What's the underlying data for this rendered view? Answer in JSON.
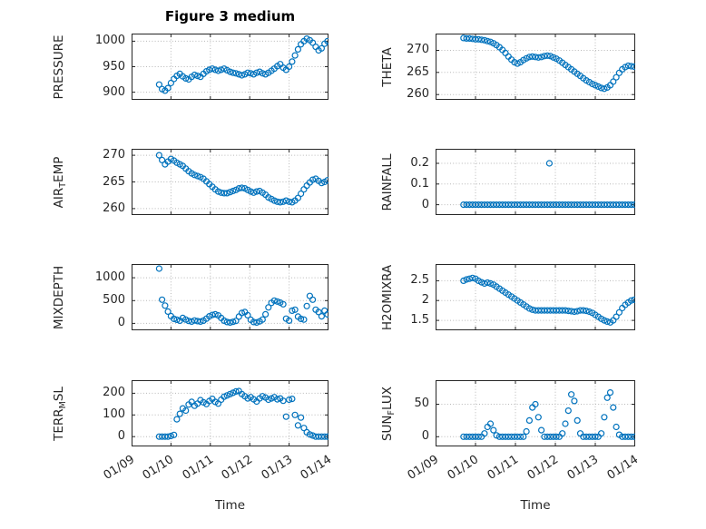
{
  "chart_data": {
    "type": "scatter",
    "title": "Figure 3 medium",
    "xlabel": "Time",
    "xlim": [
      9,
      14
    ],
    "x_ticks": [
      9,
      10,
      11,
      12,
      13,
      14
    ],
    "x_tick_labels": [
      "01/09",
      "01/10",
      "01/11",
      "01/12",
      "01/13",
      "01/14"
    ],
    "marker_color": "#0072BD",
    "grid": true,
    "legend": false,
    "common_x": [
      9.7,
      9.775,
      9.85,
      9.925,
      10.0,
      10.075,
      10.15,
      10.225,
      10.3,
      10.375,
      10.45,
      10.525,
      10.6,
      10.675,
      10.75,
      10.825,
      10.9,
      10.975,
      11.05,
      11.125,
      11.2,
      11.275,
      11.35,
      11.425,
      11.5,
      11.575,
      11.65,
      11.725,
      11.8,
      11.875,
      11.95,
      12.025,
      12.1,
      12.175,
      12.25,
      12.325,
      12.4,
      12.475,
      12.55,
      12.625,
      12.7,
      12.775,
      12.85,
      12.925,
      13.0,
      13.075,
      13.15,
      13.225,
      13.3,
      13.375,
      13.45,
      13.525,
      13.6,
      13.675,
      13.75,
      13.825,
      13.9,
      13.975
    ],
    "subplots": [
      {
        "name": "PRESSURE",
        "row": 0,
        "col": 0,
        "ylabel_segments": [
          {
            "text": "PRESSURE"
          }
        ],
        "yticks": [
          900,
          950,
          1000
        ],
        "ylim": [
          885,
          1015
        ],
        "y": [
          915,
          906,
          903,
          908,
          918,
          926,
          932,
          936,
          931,
          927,
          925,
          930,
          934,
          932,
          930,
          936,
          941,
          944,
          946,
          944,
          942,
          944,
          946,
          943,
          940,
          938,
          937,
          935,
          933,
          935,
          938,
          937,
          935,
          938,
          940,
          937,
          935,
          938,
          942,
          946,
          951,
          955,
          948,
          944,
          950,
          960,
          972,
          984,
          994,
          1000,
          1005,
          1002,
          997,
          989,
          982,
          986,
          995,
          1000
        ]
      },
      {
        "name": "THETA",
        "row": 0,
        "col": 1,
        "ylabel_segments": [
          {
            "text": "THETA"
          }
        ],
        "yticks": [
          260,
          265,
          270
        ],
        "ylim": [
          258.8,
          273.8
        ],
        "y": [
          272.8,
          272.7,
          272.7,
          272.6,
          272.5,
          272.5,
          272.4,
          272.3,
          272.1,
          271.9,
          271.6,
          271.2,
          270.7,
          270.1,
          269.4,
          268.6,
          267.9,
          267.3,
          267.0,
          267.3,
          267.8,
          268.2,
          268.5,
          268.6,
          268.5,
          268.4,
          268.5,
          268.7,
          268.8,
          268.7,
          268.4,
          268.1,
          267.7,
          267.2,
          266.7,
          266.2,
          265.7,
          265.2,
          264.7,
          264.2,
          263.7,
          263.2,
          262.8,
          262.4,
          262.1,
          261.8,
          261.5,
          261.3,
          261.6,
          262.1,
          262.9,
          263.9,
          264.9,
          265.7,
          266.2,
          266.5,
          266.4,
          266.3
        ]
      },
      {
        "name": "AIR_TEMP",
        "row": 1,
        "col": 0,
        "ylabel_segments": [
          {
            "text": "AIR"
          },
          {
            "text": "T",
            "sub": true
          },
          {
            "text": "EMP"
          }
        ],
        "yticks": [
          260,
          265,
          270
        ],
        "ylim": [
          258.8,
          271.2
        ],
        "y": [
          270.0,
          269.1,
          268.3,
          268.8,
          269.3,
          269.0,
          268.6,
          268.3,
          268.0,
          267.5,
          267.0,
          266.6,
          266.3,
          266.1,
          265.9,
          265.6,
          265.1,
          264.6,
          264.1,
          263.6,
          263.2,
          263.0,
          262.9,
          262.9,
          263.1,
          263.3,
          263.5,
          263.8,
          263.9,
          263.8,
          263.5,
          263.2,
          263.0,
          263.2,
          263.3,
          263.0,
          262.6,
          262.1,
          261.8,
          261.5,
          261.3,
          261.2,
          261.3,
          261.5,
          261.3,
          261.2,
          261.5,
          262.0,
          262.8,
          263.6,
          264.3,
          264.9,
          265.4,
          265.6,
          265.2,
          264.8,
          265.0,
          265.3
        ]
      },
      {
        "name": "RAINFALL",
        "row": 1,
        "col": 1,
        "ylabel_segments": [
          {
            "text": "RAINFALL"
          }
        ],
        "yticks": [
          0,
          0.1,
          0.2
        ],
        "ylim": [
          -0.05,
          0.27
        ],
        "y": [
          0,
          0,
          0,
          0,
          0,
          0,
          0,
          0,
          0,
          0,
          0,
          0,
          0,
          0,
          0,
          0,
          0,
          0,
          0,
          0,
          0,
          0,
          0,
          0,
          0,
          0,
          0,
          0,
          0,
          0,
          0,
          0,
          0,
          0,
          0,
          0,
          0,
          0,
          0,
          0,
          0,
          0,
          0,
          0,
          0,
          0,
          0,
          0,
          0,
          0,
          0,
          0,
          0,
          0,
          0,
          0,
          0,
          0
        ],
        "extra_points": [
          [
            11.85,
            0.2
          ]
        ]
      },
      {
        "name": "MIXDEPTH",
        "row": 2,
        "col": 0,
        "ylabel_segments": [
          {
            "text": "MIXDEPTH"
          }
        ],
        "yticks": [
          0,
          500,
          1000
        ],
        "ylim": [
          -150,
          1300
        ],
        "y": [
          1200,
          520,
          390,
          260,
          160,
          100,
          80,
          60,
          120,
          85,
          55,
          40,
          65,
          50,
          40,
          60,
          105,
          155,
          185,
          200,
          175,
          120,
          60,
          30,
          20,
          35,
          55,
          150,
          230,
          250,
          180,
          80,
          30,
          20,
          45,
          85,
          200,
          350,
          450,
          500,
          480,
          455,
          420,
          105,
          60,
          280,
          300,
          150,
          100,
          85,
          380,
          600,
          520,
          300,
          250,
          155,
          280,
          200
        ]
      },
      {
        "name": "H2OMIXRA",
        "row": 2,
        "col": 1,
        "ylabel_segments": [
          {
            "text": "H2OMIXRA"
          }
        ],
        "yticks": [
          1.5,
          2,
          2.5
        ],
        "ylim": [
          1.25,
          2.92
        ],
        "y": [
          2.5,
          2.53,
          2.55,
          2.57,
          2.55,
          2.5,
          2.46,
          2.43,
          2.45,
          2.43,
          2.4,
          2.35,
          2.3,
          2.25,
          2.2,
          2.15,
          2.1,
          2.05,
          2.0,
          1.95,
          1.9,
          1.85,
          1.8,
          1.77,
          1.75,
          1.75,
          1.75,
          1.75,
          1.75,
          1.75,
          1.75,
          1.75,
          1.75,
          1.75,
          1.75,
          1.74,
          1.73,
          1.72,
          1.73,
          1.75,
          1.75,
          1.74,
          1.72,
          1.69,
          1.64,
          1.59,
          1.54,
          1.5,
          1.47,
          1.45,
          1.5,
          1.59,
          1.7,
          1.81,
          1.89,
          1.95,
          2.0,
          2.02
        ]
      },
      {
        "name": "TERR_MSL",
        "row": 3,
        "col": 0,
        "ylabel_segments": [
          {
            "text": "TERR"
          },
          {
            "text": "M",
            "sub": true
          },
          {
            "text": "SL"
          }
        ],
        "yticks": [
          0,
          100,
          200
        ],
        "ylim": [
          -45,
          260
        ],
        "y": [
          0,
          0,
          0,
          0,
          3,
          8,
          80,
          105,
          130,
          120,
          148,
          160,
          142,
          152,
          168,
          158,
          150,
          164,
          174,
          160,
          152,
          170,
          184,
          190,
          196,
          202,
          208,
          210,
          196,
          186,
          176,
          182,
          172,
          162,
          176,
          186,
          180,
          170,
          176,
          182,
          172,
          176,
          165,
          92,
          170,
          174,
          100,
          52,
          88,
          40,
          20,
          10,
          5,
          0,
          0,
          0,
          0,
          0
        ]
      },
      {
        "name": "SUN_FLUX",
        "row": 3,
        "col": 1,
        "ylabel_segments": [
          {
            "text": "SUN"
          },
          {
            "text": "F",
            "sub": true
          },
          {
            "text": "LUX"
          }
        ],
        "yticks": [
          0,
          50
        ],
        "ylim": [
          -15,
          87
        ],
        "y": [
          0,
          0,
          0,
          0,
          0,
          0,
          0,
          5,
          15,
          20,
          10,
          2,
          0,
          0,
          0,
          0,
          0,
          0,
          0,
          0,
          0,
          8,
          25,
          45,
          50,
          30,
          10,
          0,
          0,
          0,
          0,
          0,
          0,
          5,
          20,
          40,
          65,
          55,
          25,
          5,
          0,
          0,
          0,
          0,
          0,
          0,
          5,
          30,
          60,
          68,
          45,
          15,
          3,
          0,
          0,
          0,
          0,
          0
        ]
      }
    ]
  }
}
